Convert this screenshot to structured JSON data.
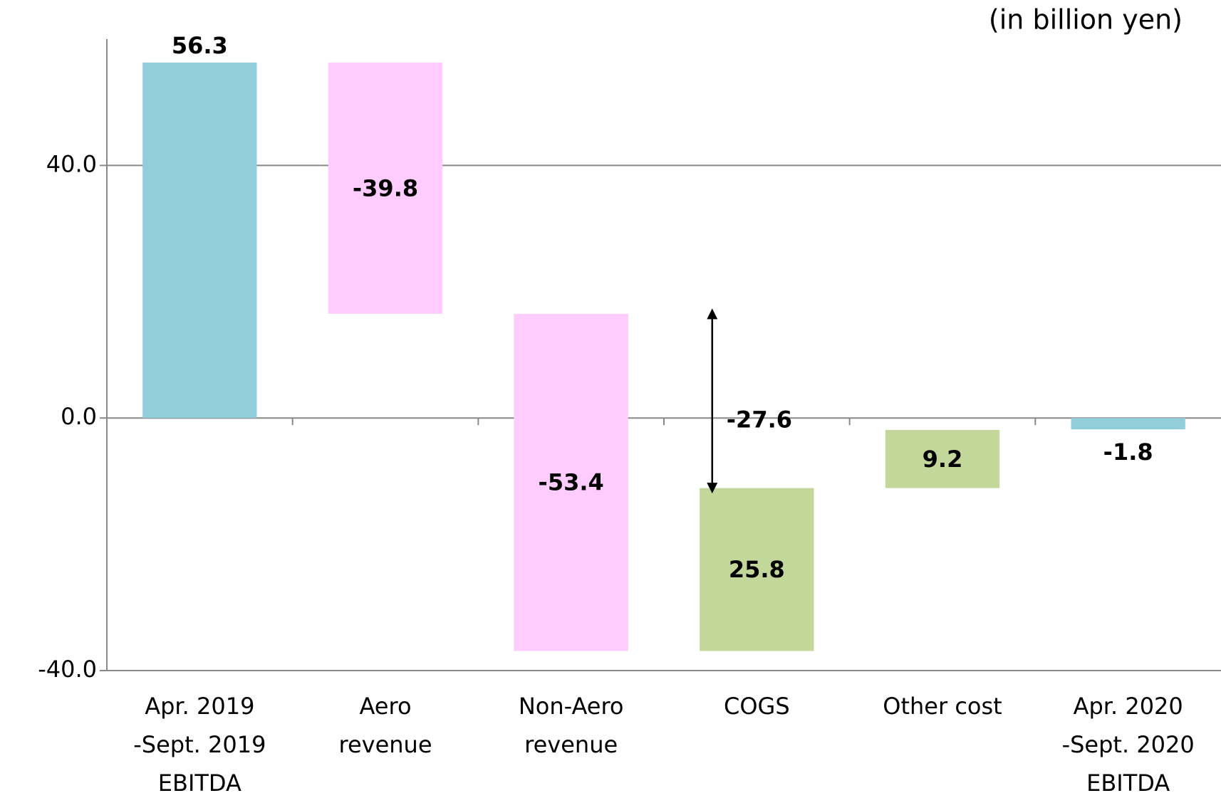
{
  "chart_data": {
    "type": "waterfall",
    "subtitle": "(in billion yen)",
    "categories": [
      [
        "Apr. 2019",
        "-Sept. 2019",
        "EBITDA"
      ],
      [
        "Aero",
        "revenue"
      ],
      [
        "Non-Aero",
        "revenue"
      ],
      [
        "COGS"
      ],
      [
        "Other cost"
      ],
      [
        "Apr. 2020",
        "-Sept. 2020",
        "EBITDA"
      ]
    ],
    "values": [
      56.3,
      -39.8,
      -53.4,
      25.8,
      9.2,
      -1.8
    ],
    "colors": {
      "total": "#92cddc",
      "decrease": "#ffccff",
      "increase": "#c4d79b"
    },
    "annotation": {
      "value": -27.6
    },
    "ylim": [
      -40,
      60
    ],
    "yticks": [
      {
        "value": -40,
        "label": "-40.0"
      },
      {
        "value": 0,
        "label": "0.0"
      },
      {
        "value": 40,
        "label": "40.0"
      }
    ],
    "grid": true
  }
}
